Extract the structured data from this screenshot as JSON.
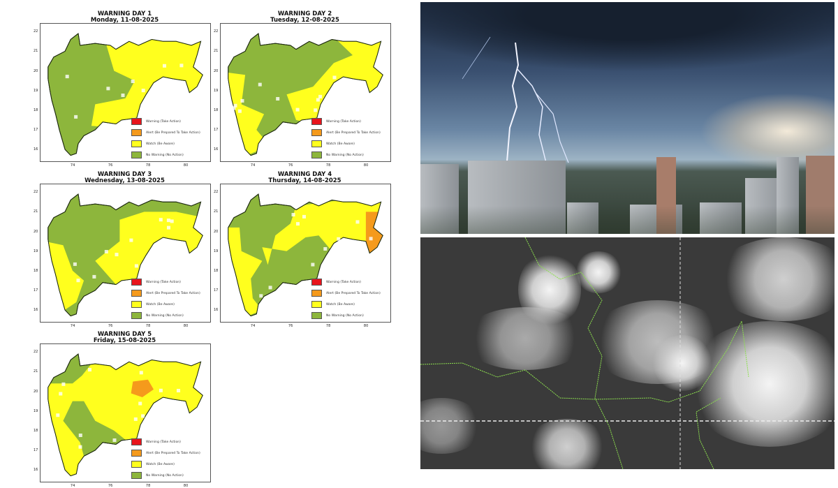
{
  "maps": [
    {
      "title": "WARNING DAY 1",
      "date": "Monday, 11-08-2025",
      "show_alert": true
    },
    {
      "title": "WARNING DAY 2",
      "date": "Tuesday, 12-08-2025"
    },
    {
      "title": "WARNING DAY 3",
      "date": "Wednesday, 13-08-2025"
    },
    {
      "title": "WARNING DAY 4",
      "date": "Thursday, 14-08-2025"
    },
    {
      "title": "WARNING DAY 5",
      "date": "Friday, 15-08-2025"
    }
  ],
  "y_ticks": [
    "22",
    "21",
    "20",
    "19",
    "18",
    "17",
    "16"
  ],
  "x_ticks": [
    "74",
    "76",
    "78",
    "80"
  ],
  "legend": [
    {
      "label": "Warning (Take Action)",
      "color": "#e8141c"
    },
    {
      "label": "Alert (Be Prepared To Take Action)",
      "color": "#f59a1c"
    },
    {
      "label": "Watch (Be Aware)",
      "color": "#ffff1e"
    },
    {
      "label": "No Warning (No Action)",
      "color": "#8db63c"
    }
  ],
  "colors": {
    "no_warning": "#8db63c",
    "watch": "#ffff1e",
    "alert": "#f59a1c"
  },
  "images": [
    {
      "name": "lightning-over-city-photo"
    },
    {
      "name": "satellite-cloud-image"
    }
  ]
}
